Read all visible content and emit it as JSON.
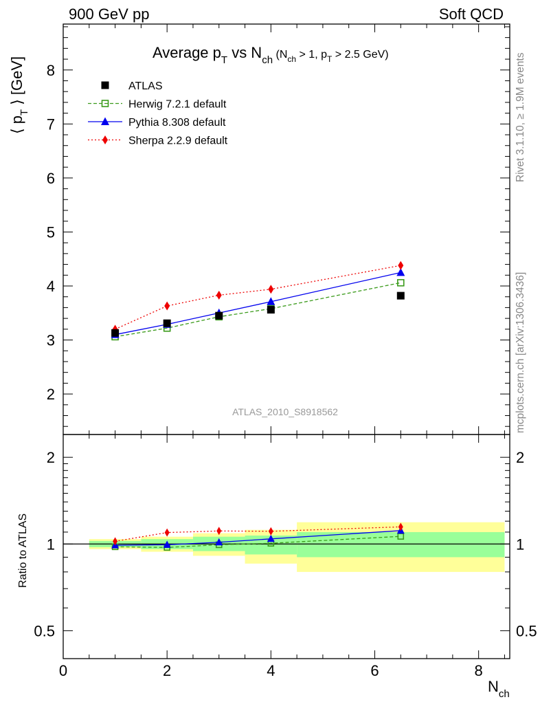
{
  "header": {
    "left_label": "900 GeV pp",
    "right_label": "Soft QCD"
  },
  "side_labels": {
    "rivet": "Rivet 3.1.10, ≥ 1.9M events",
    "mcplots": "mcplots.cern.ch [arXiv:1306.3436]"
  },
  "colors": {
    "atlas": "#000000",
    "herwig": "#3a9a1a",
    "pythia": "#0000ee",
    "sherpa": "#ee0000",
    "band_inner": "#99ff99",
    "band_outer": "#ffff99"
  },
  "chart_data": [
    {
      "type": "line",
      "panel": "main",
      "title": {
        "main": "Average p",
        "sub_t": "T",
        "vs": " vs N",
        "sub_ch": "ch",
        "paren": " (N",
        "paren_sub_ch": "ch",
        "paren_rest1": " > 1, p",
        "paren_sub_t": "T",
        "paren_rest2": " > 2.5 GeV)"
      },
      "ylabel": {
        "open": "⟨ p",
        "sub": "T",
        "close": " ⟩  [GeV]"
      },
      "xlabel": {
        "main": "N",
        "sub": "ch"
      },
      "watermark": "ATLAS_2010_S8918562",
      "xlim": [
        0,
        8.6
      ],
      "ylim": [
        1.25,
        8.85
      ],
      "x_ticks": [
        0,
        2,
        4,
        6,
        8
      ],
      "y_ticks": [
        2,
        3,
        4,
        5,
        6,
        7,
        8
      ],
      "legend_position": "top-left",
      "series": [
        {
          "name": "ATLAS",
          "key": "atlas",
          "marker": "square-filled",
          "x": [
            1,
            2,
            3,
            4,
            6.5
          ],
          "y": [
            3.13,
            3.31,
            3.45,
            3.56,
            3.82
          ]
        },
        {
          "name": "Herwig 7.2.1 default",
          "key": "herwig",
          "marker": "square-open",
          "line": "dashed",
          "x": [
            1,
            2,
            3,
            4,
            6.5
          ],
          "y": [
            3.06,
            3.22,
            3.43,
            3.58,
            4.06
          ]
        },
        {
          "name": "Pythia 8.308 default",
          "key": "pythia",
          "marker": "triangle",
          "line": "solid",
          "x": [
            1,
            2,
            3,
            4,
            6.5
          ],
          "y": [
            3.1,
            3.29,
            3.5,
            3.71,
            4.25
          ]
        },
        {
          "name": "Sherpa 2.2.9 default",
          "key": "sherpa",
          "marker": "diamond",
          "line": "dotted",
          "x": [
            1,
            2,
            3,
            4,
            6.5
          ],
          "y": [
            3.2,
            3.63,
            3.83,
            3.94,
            4.38
          ]
        }
      ]
    },
    {
      "type": "line",
      "panel": "ratio",
      "ylabel": "Ratio to ATLAS",
      "xlim": [
        0,
        8.6
      ],
      "ylim": [
        0.4,
        2.4
      ],
      "y_scale": "log",
      "y_ticks": [
        0.5,
        1,
        2
      ],
      "bins": [
        {
          "x_low": 0.5,
          "x_high": 1.5,
          "inner": [
            0.975,
            1.025
          ],
          "outer": [
            0.96,
            1.04
          ]
        },
        {
          "x_low": 1.5,
          "x_high": 2.5,
          "inner": [
            0.96,
            1.04
          ],
          "outer": [
            0.94,
            1.06
          ]
        },
        {
          "x_low": 2.5,
          "x_high": 3.5,
          "inner": [
            0.945,
            1.06
          ],
          "outer": [
            0.91,
            1.09
          ]
        },
        {
          "x_low": 3.5,
          "x_high": 4.5,
          "inner": [
            0.92,
            1.07
          ],
          "outer": [
            0.855,
            1.12
          ]
        },
        {
          "x_low": 4.5,
          "x_high": 8.5,
          "inner": [
            0.9,
            1.1
          ],
          "outer": [
            0.8,
            1.19
          ]
        }
      ],
      "series": [
        {
          "name": "Herwig 7.2.1 default",
          "key": "herwig",
          "x": [
            1,
            2,
            3,
            4,
            6.5
          ],
          "y": [
            0.978,
            0.973,
            0.994,
            1.006,
            1.063
          ]
        },
        {
          "name": "Pythia 8.308 default",
          "key": "pythia",
          "x": [
            1,
            2,
            3,
            4,
            6.5
          ],
          "y": [
            0.99,
            0.994,
            1.014,
            1.042,
            1.113
          ]
        },
        {
          "name": "Sherpa 2.2.9 default",
          "key": "sherpa",
          "x": [
            1,
            2,
            3,
            4,
            6.5
          ],
          "y": [
            1.022,
            1.096,
            1.11,
            1.107,
            1.147
          ]
        }
      ]
    }
  ]
}
